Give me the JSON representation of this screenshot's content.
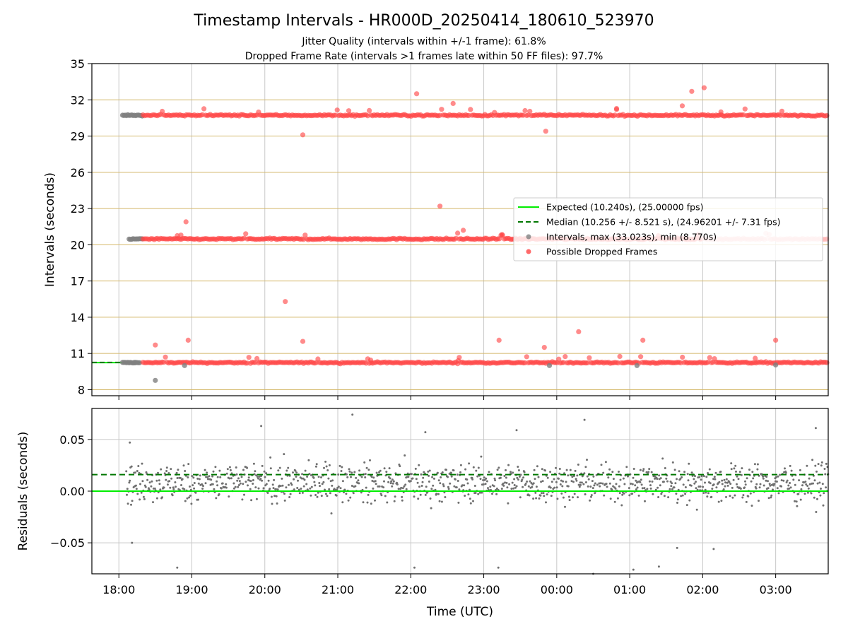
{
  "chart_data": [
    {
      "type": "scatter",
      "title": "Timestamp Intervals - HR000D_20250414_180610_523970",
      "subtitle_lines": [
        "Jitter Quality (intervals within +/-1 frame): 61.8%",
        "Dropped Frame Rate (intervals >1 frames late within 50 FF files): 97.7%"
      ],
      "xlabel": "",
      "ylabel": "Intervals (seconds)",
      "x_unit": "hours since 18:00 UTC",
      "xlim": [
        -0.37,
        9.72
      ],
      "ylim": [
        7.5,
        35
      ],
      "yticks": [
        8,
        11,
        14,
        17,
        20,
        23,
        26,
        29,
        32,
        35
      ],
      "xticks": [
        {
          "v": 0,
          "label": "18:00"
        },
        {
          "v": 1,
          "label": "19:00"
        },
        {
          "v": 2,
          "label": "20:00"
        },
        {
          "v": 3,
          "label": "21:00"
        },
        {
          "v": 4,
          "label": "22:00"
        },
        {
          "v": 5,
          "label": "23:00"
        },
        {
          "v": 6,
          "label": "00:00"
        },
        {
          "v": 7,
          "label": "01:00"
        },
        {
          "v": 8,
          "label": "02:00"
        },
        {
          "v": 9,
          "label": "03:00"
        }
      ],
      "grid": true,
      "legend_position": "center-right",
      "legend": [
        {
          "name": "Expected (10.240s), (25.00000 fps)",
          "style": "line",
          "color": "#00ee00"
        },
        {
          "name": "Median (10.256 +/- 8.521 s), (24.96201 +/- 7.31 fps)",
          "style": "dashed",
          "color": "#007700"
        },
        {
          "name": "Intervals, max (33.023s), min (8.770s)",
          "style": "marker",
          "color": "#808080"
        },
        {
          "name": "Possible Dropped Frames",
          "style": "marker",
          "color": "#ff4444"
        }
      ],
      "expected_value": 10.24,
      "median_value": 10.256,
      "series": [
        {
          "name": "Intervals, max (33.023s), min (8.770s)",
          "color": "#808080",
          "bands": [
            {
              "y": 10.24,
              "x_start": 0.05,
              "x_end": 0.3
            },
            {
              "y": 20.48,
              "x_start": 0.14,
              "x_end": 0.33
            },
            {
              "y": 30.72,
              "x_start": 0.05,
              "x_end": 0.33
            }
          ],
          "points": [
            [
              0.22,
              10.22
            ],
            [
              0.5,
              8.77
            ],
            [
              0.9,
              10.0
            ],
            [
              5.9,
              10.0
            ],
            [
              7.1,
              10.0
            ],
            [
              9.0,
              10.05
            ]
          ]
        },
        {
          "name": "Possible Dropped Frames",
          "color": "#ff4444",
          "bands": [
            {
              "y": 10.24,
              "x_start": 0.33,
              "x_end": 9.72
            },
            {
              "y": 20.48,
              "x_start": 0.33,
              "x_end": 9.72,
              "faded_after": 8.0
            },
            {
              "y": 30.72,
              "x_start": 0.33,
              "x_end": 9.72
            }
          ],
          "points": [
            [
              0.5,
              11.7
            ],
            [
              0.95,
              12.1
            ],
            [
              2.28,
              15.3
            ],
            [
              2.52,
              12.0
            ],
            [
              0.92,
              21.9
            ],
            [
              2.52,
              29.1
            ],
            [
              3.15,
              31.1
            ],
            [
              4.08,
              32.5
            ],
            [
              4.4,
              23.2
            ],
            [
              4.58,
              31.7
            ],
            [
              4.72,
              21.2
            ],
            [
              5.21,
              12.1
            ],
            [
              5.25,
              20.85
            ],
            [
              5.83,
              11.5
            ],
            [
              5.85,
              29.4
            ],
            [
              6.3,
              12.8
            ],
            [
              6.82,
              31.2
            ],
            [
              7.18,
              12.1
            ],
            [
              7.72,
              31.5
            ],
            [
              7.85,
              32.7
            ],
            [
              8.02,
              33.0
            ],
            [
              8.25,
              31.0
            ],
            [
              9.0,
              12.1
            ],
            [
              8.72,
              10.6
            ],
            [
              0.8,
              20.75
            ],
            [
              0.85,
              20.8
            ],
            [
              3.45,
              10.45
            ],
            [
              4.65,
              10.4
            ]
          ]
        }
      ]
    },
    {
      "type": "scatter",
      "title": "",
      "xlabel": "Time (UTC)",
      "ylabel": "Residuals (seconds)",
      "xlim": [
        -0.37,
        9.72
      ],
      "ylim": [
        -0.08,
        0.08
      ],
      "yticks": [
        {
          "v": -0.05,
          "label": "−0.05"
        },
        {
          "v": 0.0,
          "label": "0.00"
        },
        {
          "v": 0.05,
          "label": "0.05"
        }
      ],
      "grid": true,
      "expected_line": 0.0,
      "median_line": 0.016,
      "series": [
        {
          "name": "Residuals",
          "color": "#707070",
          "x_start": 0.1,
          "x_end": 9.72,
          "center": 0.008,
          "spread": 0.015,
          "point_count": 1150,
          "outliers": [
            [
              0.15,
              0.047
            ],
            [
              0.18,
              -0.05
            ],
            [
              0.8,
              -0.074
            ],
            [
              1.95,
              0.063
            ],
            [
              3.2,
              0.074
            ],
            [
              4.05,
              -0.074
            ],
            [
              4.2,
              0.057
            ],
            [
              5.2,
              -0.074
            ],
            [
              5.45,
              0.059
            ],
            [
              6.38,
              0.069
            ],
            [
              6.5,
              -0.08
            ],
            [
              7.05,
              -0.076
            ],
            [
              7.4,
              -0.073
            ],
            [
              7.65,
              -0.055
            ],
            [
              8.15,
              -0.056
            ],
            [
              9.55,
              0.061
            ]
          ]
        }
      ]
    }
  ]
}
